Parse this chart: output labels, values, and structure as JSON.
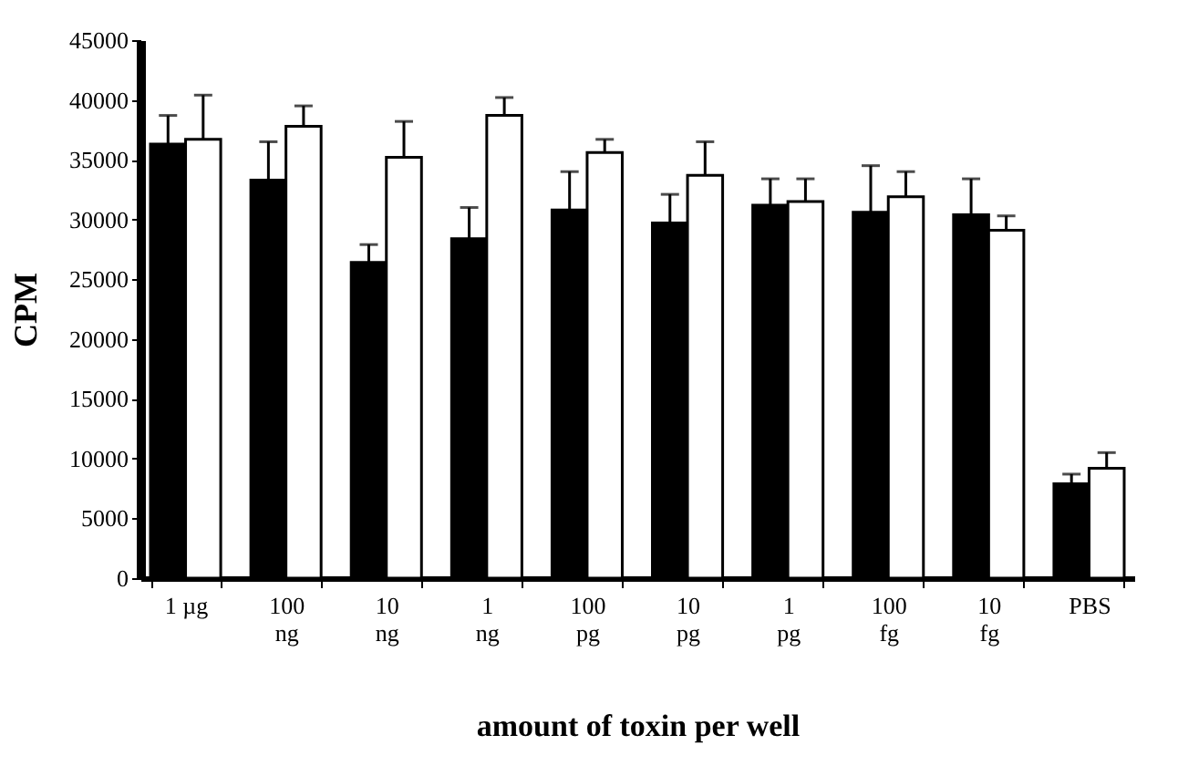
{
  "chart_data": {
    "type": "bar",
    "xlabel": "amount of toxin per well",
    "ylabel": "CPM",
    "categories": [
      "1 µg",
      "100\nng",
      "10\nng",
      "1\nng",
      "100\npg",
      "10\npg",
      "1\npg",
      "100\nfg",
      "10\nfg",
      "PBS"
    ],
    "series": [
      {
        "color": "#000000",
        "values": [
          36300,
          33300,
          26400,
          28400,
          30800,
          29700,
          31200,
          30600,
          30400,
          7900
        ],
        "errors": [
          [
            36300,
            38700
          ],
          [
            33300,
            36500
          ],
          [
            26400,
            27900
          ],
          [
            28400,
            31000
          ],
          [
            30800,
            34000
          ],
          [
            29700,
            32100
          ],
          [
            31200,
            33400
          ],
          [
            30600,
            34500
          ],
          [
            30400,
            33400
          ],
          [
            7900,
            8700
          ]
        ]
      },
      {
        "color": "#ffffff",
        "values": [
          36700,
          37800,
          35200,
          38700,
          35600,
          33700,
          31500,
          31900,
          29100,
          9200
        ],
        "errors": [
          [
            36700,
            40400
          ],
          [
            37800,
            39500
          ],
          [
            35200,
            38200
          ],
          [
            38700,
            40200
          ],
          [
            35600,
            36700
          ],
          [
            33700,
            36500
          ],
          [
            31500,
            33400
          ],
          [
            31900,
            34000
          ],
          [
            29100,
            30300
          ],
          [
            9200,
            10500
          ]
        ]
      }
    ],
    "ylim": [
      0,
      45000
    ],
    "yticks": [
      0,
      5000,
      10000,
      15000,
      20000,
      25000,
      30000,
      35000,
      40000,
      45000
    ],
    "grid": false
  }
}
